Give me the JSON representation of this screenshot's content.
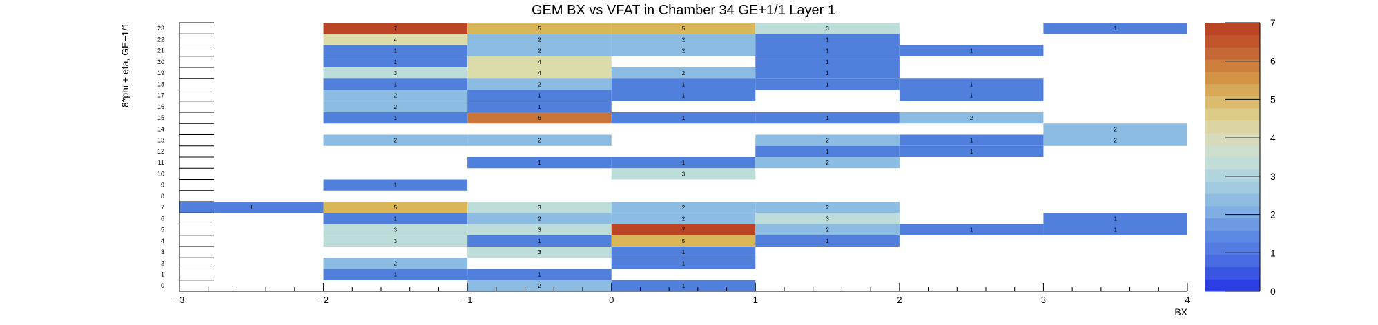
{
  "chart_data": {
    "type": "heatmap",
    "title": "GEM BX vs VFAT in Chamber 34 GE+1/1 Layer 1",
    "xlabel": "BX",
    "ylabel": "8*phi + eta, GE+1/1",
    "xlim": [
      -3,
      4
    ],
    "ylim": [
      0,
      24
    ],
    "zlim": [
      0,
      7
    ],
    "x_ticks": [
      "−3",
      "−2",
      "−1",
      "0",
      "1",
      "2",
      "3",
      "4"
    ],
    "y_ticks": [
      "0",
      "1",
      "2",
      "3",
      "4",
      "5",
      "6",
      "7",
      "8",
      "9",
      "10",
      "11",
      "12",
      "13",
      "14",
      "15",
      "16",
      "17",
      "18",
      "19",
      "20",
      "21",
      "22",
      "23"
    ],
    "z_ticks": [
      "0",
      "1",
      "2",
      "3",
      "4",
      "5",
      "6",
      "7"
    ],
    "palette": "kTemperatureMap",
    "bins": [
      {
        "bx": -3,
        "vfat": 7,
        "value": 1
      },
      {
        "bx": -2,
        "vfat": 23,
        "value": 7
      },
      {
        "bx": -2,
        "vfat": 22,
        "value": 4
      },
      {
        "bx": -2,
        "vfat": 21,
        "value": 1
      },
      {
        "bx": -2,
        "vfat": 20,
        "value": 1
      },
      {
        "bx": -2,
        "vfat": 19,
        "value": 3
      },
      {
        "bx": -2,
        "vfat": 18,
        "value": 1
      },
      {
        "bx": -2,
        "vfat": 17,
        "value": 2
      },
      {
        "bx": -2,
        "vfat": 16,
        "value": 2
      },
      {
        "bx": -2,
        "vfat": 15,
        "value": 1
      },
      {
        "bx": -2,
        "vfat": 13,
        "value": 2
      },
      {
        "bx": -2,
        "vfat": 9,
        "value": 1
      },
      {
        "bx": -2,
        "vfat": 7,
        "value": 5
      },
      {
        "bx": -2,
        "vfat": 6,
        "value": 1
      },
      {
        "bx": -2,
        "vfat": 5,
        "value": 3
      },
      {
        "bx": -2,
        "vfat": 4,
        "value": 3
      },
      {
        "bx": -2,
        "vfat": 2,
        "value": 2
      },
      {
        "bx": -2,
        "vfat": 1,
        "value": 1
      },
      {
        "bx": -1,
        "vfat": 23,
        "value": 5
      },
      {
        "bx": -1,
        "vfat": 22,
        "value": 2
      },
      {
        "bx": -1,
        "vfat": 21,
        "value": 2
      },
      {
        "bx": -1,
        "vfat": 20,
        "value": 4
      },
      {
        "bx": -1,
        "vfat": 19,
        "value": 4
      },
      {
        "bx": -1,
        "vfat": 18,
        "value": 2
      },
      {
        "bx": -1,
        "vfat": 17,
        "value": 1
      },
      {
        "bx": -1,
        "vfat": 16,
        "value": 1
      },
      {
        "bx": -1,
        "vfat": 15,
        "value": 6
      },
      {
        "bx": -1,
        "vfat": 13,
        "value": 2
      },
      {
        "bx": -1,
        "vfat": 11,
        "value": 1
      },
      {
        "bx": -1,
        "vfat": 7,
        "value": 3
      },
      {
        "bx": -1,
        "vfat": 6,
        "value": 2
      },
      {
        "bx": -1,
        "vfat": 5,
        "value": 3
      },
      {
        "bx": -1,
        "vfat": 4,
        "value": 1
      },
      {
        "bx": -1,
        "vfat": 3,
        "value": 3
      },
      {
        "bx": -1,
        "vfat": 1,
        "value": 1
      },
      {
        "bx": -1,
        "vfat": 0,
        "value": 2
      },
      {
        "bx": 0,
        "vfat": 23,
        "value": 5
      },
      {
        "bx": 0,
        "vfat": 22,
        "value": 2
      },
      {
        "bx": 0,
        "vfat": 21,
        "value": 2
      },
      {
        "bx": 0,
        "vfat": 19,
        "value": 2
      },
      {
        "bx": 0,
        "vfat": 18,
        "value": 1
      },
      {
        "bx": 0,
        "vfat": 17,
        "value": 1
      },
      {
        "bx": 0,
        "vfat": 15,
        "value": 1
      },
      {
        "bx": 0,
        "vfat": 11,
        "value": 1
      },
      {
        "bx": 0,
        "vfat": 10,
        "value": 3
      },
      {
        "bx": 0,
        "vfat": 7,
        "value": 2
      },
      {
        "bx": 0,
        "vfat": 6,
        "value": 2
      },
      {
        "bx": 0,
        "vfat": 5,
        "value": 7
      },
      {
        "bx": 0,
        "vfat": 4,
        "value": 5
      },
      {
        "bx": 0,
        "vfat": 3,
        "value": 1
      },
      {
        "bx": 0,
        "vfat": 2,
        "value": 1
      },
      {
        "bx": 0,
        "vfat": 0,
        "value": 1
      },
      {
        "bx": 1,
        "vfat": 23,
        "value": 3
      },
      {
        "bx": 1,
        "vfat": 22,
        "value": 1
      },
      {
        "bx": 1,
        "vfat": 21,
        "value": 1
      },
      {
        "bx": 1,
        "vfat": 20,
        "value": 1
      },
      {
        "bx": 1,
        "vfat": 19,
        "value": 1
      },
      {
        "bx": 1,
        "vfat": 18,
        "value": 1
      },
      {
        "bx": 1,
        "vfat": 15,
        "value": 1
      },
      {
        "bx": 1,
        "vfat": 13,
        "value": 2
      },
      {
        "bx": 1,
        "vfat": 12,
        "value": 1
      },
      {
        "bx": 1,
        "vfat": 11,
        "value": 2
      },
      {
        "bx": 1,
        "vfat": 7,
        "value": 2
      },
      {
        "bx": 1,
        "vfat": 6,
        "value": 3
      },
      {
        "bx": 1,
        "vfat": 5,
        "value": 2
      },
      {
        "bx": 1,
        "vfat": 4,
        "value": 1
      },
      {
        "bx": 2,
        "vfat": 21,
        "value": 1
      },
      {
        "bx": 2,
        "vfat": 18,
        "value": 1
      },
      {
        "bx": 2,
        "vfat": 17,
        "value": 1
      },
      {
        "bx": 2,
        "vfat": 15,
        "value": 2
      },
      {
        "bx": 2,
        "vfat": 13,
        "value": 1
      },
      {
        "bx": 2,
        "vfat": 12,
        "value": 1
      },
      {
        "bx": 2,
        "vfat": 5,
        "value": 1
      },
      {
        "bx": 3,
        "vfat": 23,
        "value": 1
      },
      {
        "bx": 3,
        "vfat": 14,
        "value": 2
      },
      {
        "bx": 3,
        "vfat": 13,
        "value": 2
      },
      {
        "bx": 3,
        "vfat": 6,
        "value": 1
      },
      {
        "bx": 3,
        "vfat": 5,
        "value": 1
      }
    ],
    "colors": {
      "1": "#5080dc",
      "2": "#8cbce2",
      "3": "#bcdcda",
      "4": "#dcdcaa",
      "5": "#d9b657",
      "6": "#c7753b",
      "7": "#bb4424"
    },
    "colorbar_gradient": [
      "#2d3ee4",
      "#4a6ee2",
      "#5e8ce3",
      "#86b2e3",
      "#a8d1e0",
      "#cadfd6",
      "#dcdaae",
      "#dcc274",
      "#d49a47",
      "#c76a36",
      "#bb4424"
    ]
  }
}
